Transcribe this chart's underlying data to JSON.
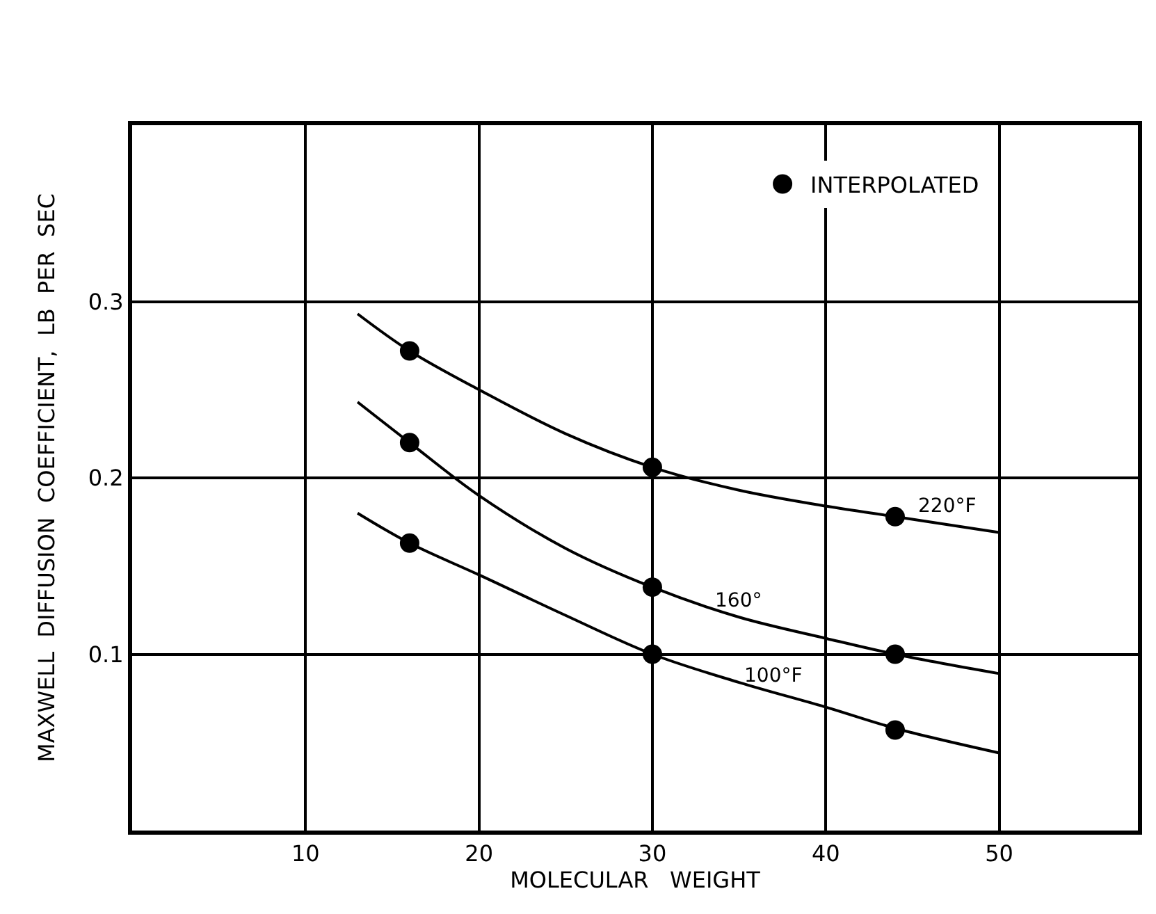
{
  "chart_data": {
    "type": "line",
    "xlabel": "MOLECULAR   WEIGHT",
    "ylabel": "MAXWELL  DIFFUSION  COEFFICIENT,  LB  PER  SEC",
    "xlim": [
      0,
      58
    ],
    "ylim": [
      0,
      0.4
    ],
    "xticks": [
      10,
      20,
      30,
      40,
      50
    ],
    "yticks": [
      0.1,
      0.2,
      0.3
    ],
    "grid": true,
    "legend": "top right",
    "series": [
      {
        "color": "#000000",
        "x": [
          13,
          16,
          20,
          25,
          30,
          35,
          40,
          44,
          50
        ],
        "values": [
          0.293,
          0.272,
          0.25,
          0.225,
          0.206,
          0.193,
          0.184,
          0.178,
          0.169
        ]
      },
      {
        "color": "#000000",
        "x": [
          13,
          16,
          20,
          25,
          30,
          35,
          40,
          44,
          50
        ],
        "values": [
          0.243,
          0.22,
          0.19,
          0.16,
          0.138,
          0.121,
          0.109,
          0.1,
          0.089
        ]
      },
      {
        "color": "#000000",
        "x": [
          13,
          16,
          20,
          25,
          30,
          35,
          40,
          44,
          50
        ],
        "values": [
          0.18,
          0.163,
          0.145,
          0.122,
          0.1,
          0.084,
          0.07,
          0.058,
          0.044
        ]
      },
      {
        "type": "scatter",
        "name": "INTERPOLATED",
        "color": "#000000",
        "marker": "circle",
        "x": [
          16,
          30,
          44,
          16,
          30,
          44,
          16,
          30,
          44
        ],
        "values": [
          0.272,
          0.206,
          0.178,
          0.22,
          0.138,
          0.1,
          0.163,
          0.1,
          0.057
        ]
      }
    ],
    "annotations": [
      {
        "text": "220°F",
        "x": 47,
        "y": 0.174
      },
      {
        "text": "160°",
        "x": 35,
        "y": 0.121
      },
      {
        "text": "100°F",
        "x": 37,
        "y": 0.078
      }
    ]
  }
}
